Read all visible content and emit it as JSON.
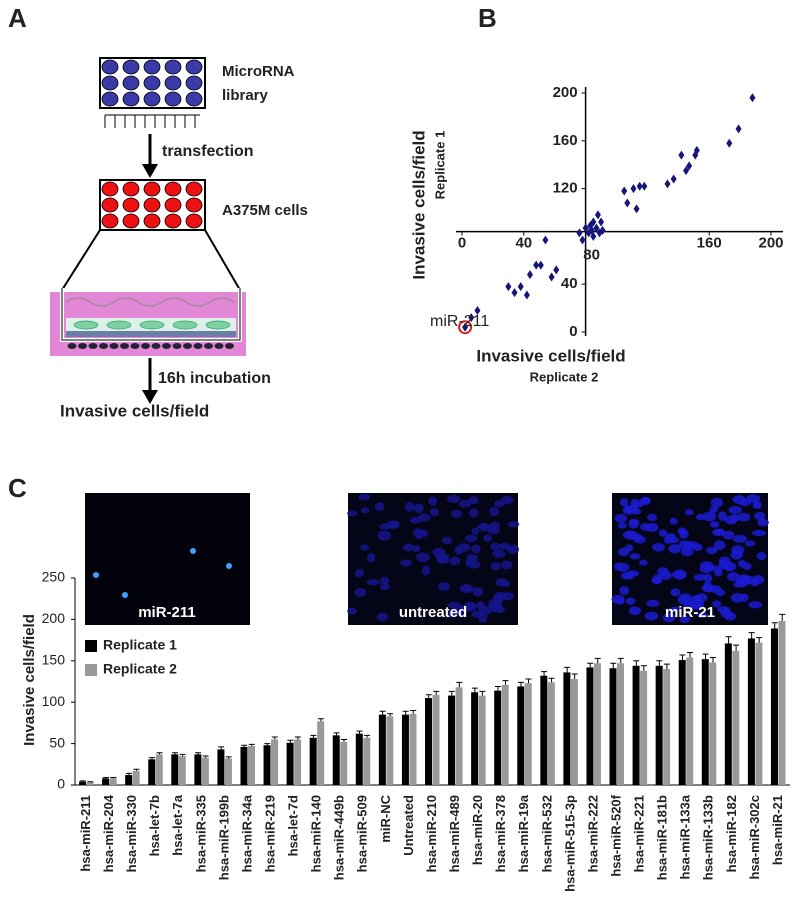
{
  "panels": {
    "a": "A",
    "b": "B",
    "c": "C"
  },
  "diagram": {
    "library_1": "MicroRNA",
    "library_2": "library",
    "step_1": "transfection",
    "cells": "A375M cells",
    "step_2": "16h incubation",
    "readout": "Invasive cells/field"
  },
  "images": [
    {
      "label": "miR-211"
    },
    {
      "label": "untreated"
    },
    {
      "label": "miR-21"
    }
  ],
  "chart_data": [
    {
      "type": "scatter",
      "x_label": "Invasive cells/field",
      "x_sublabel": "Replicate 2",
      "y_label": "Invasive cells/field",
      "y_sublabel": "Replicate 1",
      "annotation": "miR-211",
      "x": [
        2,
        6,
        10,
        30,
        34,
        38,
        42,
        44,
        48,
        51,
        54,
        58,
        61,
        76,
        78,
        82,
        83,
        84,
        85,
        87,
        88,
        89,
        90,
        91,
        85,
        80,
        107,
        105,
        111,
        113,
        115,
        118,
        133,
        137,
        142,
        147,
        145,
        152,
        151,
        173,
        179,
        188
      ],
      "y": [
        4,
        12,
        18,
        38,
        33,
        38,
        31,
        48,
        56,
        56,
        77,
        46,
        52,
        83,
        77,
        83,
        89,
        85,
        92,
        87,
        98,
        83,
        92,
        85,
        80,
        87,
        108,
        118,
        120,
        103,
        122,
        122,
        124,
        128,
        148,
        139,
        135,
        152,
        148,
        158,
        170,
        196
      ],
      "color": "#15157a",
      "highlight_color": "#e02020",
      "xlim": [
        0,
        200
      ],
      "ylim": [
        0,
        200
      ],
      "xticks": [
        0,
        40,
        80,
        160,
        200
      ],
      "yticks": [
        0,
        40,
        120,
        160,
        200
      ],
      "axes_cross": [
        80,
        84
      ]
    },
    {
      "type": "bar",
      "y_label": "Invasive cells/field",
      "categories": [
        "hsa-miR-211",
        "hsa-miR-204",
        "hsa-miR-330",
        "hsa-let-7b",
        "hsa-let-7a",
        "hsa-miR-335",
        "hsa-miR-199b",
        "hsa-miR-34a",
        "hsa-miR-219",
        "hsa-let-7d",
        "hsa-miR-140",
        "hsa-miR-449b",
        "hsa-miR-509",
        "miR-NC",
        "Untreated",
        "hsa-miR-210",
        "hsa-miR-489",
        "hsa-miR-20",
        "hsa-miR-378",
        "hsa-miR-19a",
        "hsa-miR-532",
        "hsa-miR-515-3p",
        "hsa-miR-222",
        "hsa-miR-520f",
        "hsa-miR-221",
        "hsa-miR-181b",
        "hsa-miR-133a",
        "hsa-miR-133b",
        "hsa-miR-182",
        "hsa-miR-302c",
        "hsa-miR-21"
      ],
      "series": [
        {
          "name": "Replicate 1",
          "color": "#000000",
          "values": [
            4,
            8,
            12,
            31,
            37,
            37,
            43,
            46,
            48,
            51,
            57,
            60,
            62,
            85,
            85,
            105,
            108,
            112,
            114,
            119,
            132,
            136,
            142,
            141,
            144,
            144,
            151,
            152,
            171,
            177,
            189
          ],
          "errors": [
            1,
            1,
            2,
            2,
            2,
            2,
            3,
            2,
            2,
            3,
            3,
            3,
            3,
            4,
            4,
            4,
            5,
            5,
            5,
            5,
            5,
            6,
            5,
            6,
            6,
            6,
            6,
            6,
            8,
            7,
            7
          ]
        },
        {
          "name": "Replicate 2",
          "color": "#999999",
          "values": [
            3,
            8,
            17,
            37,
            35,
            33,
            32,
            47,
            55,
            55,
            77,
            52,
            57,
            83,
            86,
            109,
            118,
            108,
            121,
            123,
            124,
            128,
            147,
            147,
            138,
            140,
            154,
            148,
            162,
            172,
            198
          ],
          "errors": [
            1,
            1,
            2,
            2,
            2,
            2,
            2,
            2,
            3,
            3,
            3,
            3,
            3,
            3,
            4,
            4,
            6,
            5,
            5,
            5,
            5,
            6,
            6,
            6,
            6,
            6,
            6,
            6,
            7,
            6,
            8
          ]
        }
      ],
      "ylim": [
        0,
        250
      ],
      "yticks": [
        0,
        50,
        100,
        150,
        200,
        250
      ]
    }
  ]
}
